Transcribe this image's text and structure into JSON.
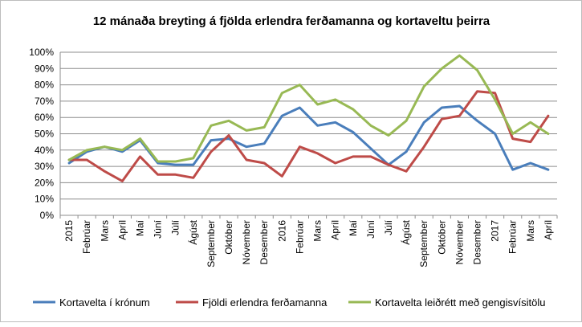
{
  "chart_data": {
    "type": "line",
    "title": "12 mánaða breyting á fjölda erlendra ferðamanna og kortaveltu þeirra",
    "xlabel": "",
    "ylabel": "",
    "ylim": [
      0,
      100
    ],
    "ytick_step": 10,
    "ytick_labels": [
      "0%",
      "10%",
      "20%",
      "30%",
      "40%",
      "50%",
      "60%",
      "70%",
      "80%",
      "90%",
      "100%"
    ],
    "grid": true,
    "legend_position": "bottom",
    "categories": [
      "2015",
      "Febrúar",
      "Mars",
      "Apríl",
      "Maí",
      "Júní",
      "Júlí",
      "Ágúst",
      "September",
      "Október",
      "Nóvember",
      "Desember",
      "2016",
      "Febrúar",
      "Mars",
      "Apríl",
      "Maí",
      "Júní",
      "Júlí",
      "Ágúst",
      "September",
      "Október",
      "Nóvember",
      "Desember",
      "2017",
      "Febrúar",
      "Mars",
      "Apríl"
    ],
    "series": [
      {
        "name": "Kortavelta í krónum",
        "color": "#4a7ebb",
        "values": [
          32,
          39,
          42,
          39,
          46,
          32,
          31,
          31,
          46,
          47,
          42,
          44,
          61,
          66,
          55,
          57,
          51,
          41,
          31,
          39,
          57,
          66,
          67,
          58,
          50,
          28,
          32,
          28
        ]
      },
      {
        "name": "Fjöldi erlendra ferðamanna",
        "color": "#be4b48",
        "values": [
          34,
          34,
          27,
          21,
          36,
          25,
          25,
          23,
          39,
          49,
          34,
          32,
          24,
          42,
          38,
          32,
          36,
          36,
          31,
          27,
          42,
          59,
          61,
          76,
          75,
          47,
          45,
          61
        ]
      },
      {
        "name": "Kortavelta leiðrétt með gengisvísitölu",
        "color": "#98b954",
        "values": [
          34,
          40,
          42,
          40,
          47,
          33,
          33,
          35,
          55,
          58,
          52,
          54,
          75,
          80,
          68,
          71,
          65,
          55,
          49,
          58,
          79,
          90,
          98,
          89,
          71,
          50,
          57,
          50
        ]
      }
    ]
  }
}
